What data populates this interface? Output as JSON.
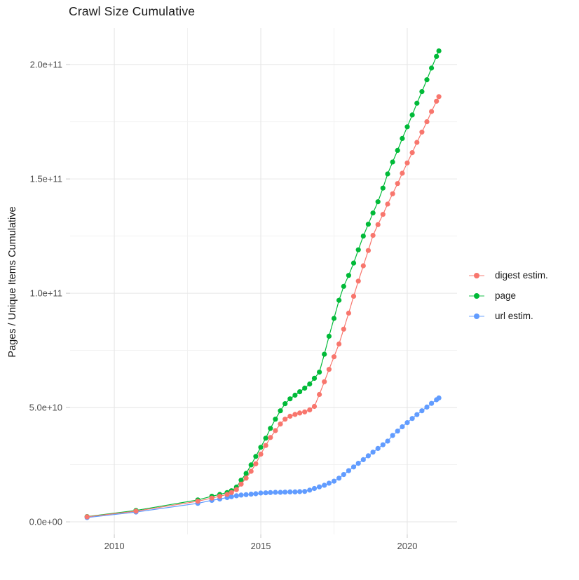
{
  "chart_data": {
    "type": "line-scatter",
    "title": "Crawl Size Cumulative",
    "xlabel": "",
    "ylabel": "Pages / Unique Items Cumulative",
    "value_unit": "1e9",
    "grid": "on",
    "legend_position": "right",
    "x_axis": {
      "domain": [
        2008.49,
        2021.7
      ],
      "ticks": [
        {
          "label": "2010",
          "value": 2010
        },
        {
          "label": "2015",
          "value": 2015
        },
        {
          "label": "2020",
          "value": 2020
        }
      ],
      "minor": [
        2012.5,
        2017.5
      ]
    },
    "y_axis": {
      "domain": [
        -5.5,
        216
      ],
      "ticks": [
        {
          "label": "0.0e+00",
          "value": 0
        },
        {
          "label": "5.0e+10",
          "value": 50
        },
        {
          "label": "1.0e+11",
          "value": 100
        },
        {
          "label": "1.5e+11",
          "value": 150
        },
        {
          "label": "2.0e+11",
          "value": 200
        }
      ],
      "minor": [
        25,
        75,
        125,
        175
      ]
    },
    "series": [
      {
        "name": "digest estim.",
        "color": "#F8766D",
        "z": 3,
        "points": [
          [
            2009.07,
            2.2
          ],
          [
            2010.74,
            4.7
          ],
          [
            2012.85,
            9.0
          ],
          [
            2013.33,
            10.4
          ],
          [
            2013.6,
            11.2
          ],
          [
            2013.85,
            12.0
          ],
          [
            2014.0,
            12.8
          ],
          [
            2014.17,
            14.1
          ],
          [
            2014.33,
            16.5
          ],
          [
            2014.5,
            19.1
          ],
          [
            2014.67,
            22.1
          ],
          [
            2014.83,
            25.4
          ],
          [
            2015.0,
            29.6
          ],
          [
            2015.17,
            33.4
          ],
          [
            2015.33,
            36.9
          ],
          [
            2015.5,
            39.9
          ],
          [
            2015.67,
            42.8
          ],
          [
            2015.83,
            44.9
          ],
          [
            2016.0,
            46.2
          ],
          [
            2016.17,
            47.0
          ],
          [
            2016.33,
            47.6
          ],
          [
            2016.5,
            48.1
          ],
          [
            2016.67,
            49.0
          ],
          [
            2016.83,
            50.5
          ],
          [
            2017.0,
            55.7
          ],
          [
            2017.17,
            61.3
          ],
          [
            2017.33,
            66.7
          ],
          [
            2017.5,
            72.2
          ],
          [
            2017.67,
            77.8
          ],
          [
            2017.83,
            84.3
          ],
          [
            2018.0,
            91.3
          ],
          [
            2018.17,
            98.7
          ],
          [
            2018.33,
            105.3
          ],
          [
            2018.5,
            112.0
          ],
          [
            2018.67,
            118.7
          ],
          [
            2018.83,
            125.3
          ],
          [
            2019.0,
            130.0
          ],
          [
            2019.17,
            134.5
          ],
          [
            2019.33,
            139.0
          ],
          [
            2019.5,
            143.5
          ],
          [
            2019.67,
            148.0
          ],
          [
            2019.83,
            152.5
          ],
          [
            2020.0,
            157.0
          ],
          [
            2020.17,
            161.5
          ],
          [
            2020.33,
            166.0
          ],
          [
            2020.5,
            170.5
          ],
          [
            2020.67,
            175.0
          ],
          [
            2020.83,
            179.5
          ],
          [
            2021.0,
            184.0
          ],
          [
            2021.08,
            186.0
          ]
        ]
      },
      {
        "name": "page",
        "color": "#00BA38",
        "z": 1,
        "points": [
          [
            2009.07,
            2.3
          ],
          [
            2010.74,
            5.0
          ],
          [
            2012.85,
            9.6
          ],
          [
            2013.33,
            11.2
          ],
          [
            2013.6,
            12.0
          ],
          [
            2013.85,
            12.8
          ],
          [
            2014.0,
            13.6
          ],
          [
            2014.17,
            15.2
          ],
          [
            2014.33,
            18.2
          ],
          [
            2014.5,
            21.2
          ],
          [
            2014.67,
            24.9
          ],
          [
            2014.83,
            28.6
          ],
          [
            2015.0,
            32.6
          ],
          [
            2015.17,
            36.6
          ],
          [
            2015.33,
            40.9
          ],
          [
            2015.5,
            44.9
          ],
          [
            2015.67,
            48.6
          ],
          [
            2015.83,
            51.7
          ],
          [
            2016.0,
            53.8
          ],
          [
            2016.17,
            55.4
          ],
          [
            2016.33,
            56.9
          ],
          [
            2016.5,
            58.5
          ],
          [
            2016.67,
            60.3
          ],
          [
            2016.83,
            62.8
          ],
          [
            2017.0,
            65.5
          ],
          [
            2017.17,
            73.3
          ],
          [
            2017.33,
            81.2
          ],
          [
            2017.5,
            89.0
          ],
          [
            2017.67,
            96.9
          ],
          [
            2017.83,
            103.0
          ],
          [
            2018.0,
            107.8
          ],
          [
            2018.17,
            113.2
          ],
          [
            2018.33,
            119.0
          ],
          [
            2018.5,
            125.0
          ],
          [
            2018.67,
            130.2
          ],
          [
            2018.83,
            135.1
          ],
          [
            2019.0,
            140.0
          ],
          [
            2019.17,
            146.0
          ],
          [
            2019.33,
            152.2
          ],
          [
            2019.5,
            157.4
          ],
          [
            2019.67,
            162.5
          ],
          [
            2019.83,
            167.7
          ],
          [
            2020.0,
            172.8
          ],
          [
            2020.17,
            178.0
          ],
          [
            2020.33,
            183.1
          ],
          [
            2020.5,
            188.2
          ],
          [
            2020.67,
            193.4
          ],
          [
            2020.83,
            198.5
          ],
          [
            2021.0,
            203.6
          ],
          [
            2021.08,
            206.0
          ]
        ]
      },
      {
        "name": "url estim.",
        "color": "#619CFF",
        "z": 2,
        "points": [
          [
            2009.07,
            1.9
          ],
          [
            2010.74,
            4.3
          ],
          [
            2012.85,
            8.1
          ],
          [
            2013.33,
            9.4
          ],
          [
            2013.6,
            10.0
          ],
          [
            2013.85,
            10.6
          ],
          [
            2014.0,
            11.0
          ],
          [
            2014.17,
            11.4
          ],
          [
            2014.33,
            11.7
          ],
          [
            2014.5,
            11.9
          ],
          [
            2014.67,
            12.1
          ],
          [
            2014.83,
            12.3
          ],
          [
            2015.0,
            12.6
          ],
          [
            2015.17,
            12.7
          ],
          [
            2015.33,
            12.8
          ],
          [
            2015.5,
            12.9
          ],
          [
            2015.67,
            12.9
          ],
          [
            2015.83,
            13.0
          ],
          [
            2016.0,
            13.1
          ],
          [
            2016.17,
            13.1
          ],
          [
            2016.33,
            13.2
          ],
          [
            2016.5,
            13.3
          ],
          [
            2016.67,
            13.9
          ],
          [
            2016.83,
            14.6
          ],
          [
            2017.0,
            15.3
          ],
          [
            2017.17,
            16.0
          ],
          [
            2017.33,
            16.9
          ],
          [
            2017.5,
            17.8
          ],
          [
            2017.67,
            19.1
          ],
          [
            2017.83,
            20.7
          ],
          [
            2018.0,
            22.4
          ],
          [
            2018.17,
            24.0
          ],
          [
            2018.33,
            25.6
          ],
          [
            2018.5,
            27.2
          ],
          [
            2018.67,
            28.9
          ],
          [
            2018.83,
            30.5
          ],
          [
            2019.0,
            32.1
          ],
          [
            2019.17,
            33.7
          ],
          [
            2019.33,
            35.3
          ],
          [
            2019.5,
            37.8
          ],
          [
            2019.67,
            39.7
          ],
          [
            2019.83,
            41.6
          ],
          [
            2020.0,
            43.4
          ],
          [
            2020.17,
            45.2
          ],
          [
            2020.33,
            46.9
          ],
          [
            2020.5,
            48.6
          ],
          [
            2020.67,
            50.2
          ],
          [
            2020.83,
            51.8
          ],
          [
            2021.0,
            53.4
          ],
          [
            2021.08,
            54.2
          ]
        ]
      }
    ],
    "style": {
      "grid_major_color": "#E6E6E6",
      "grid_minor_color": "#F1F1F1",
      "tick_color": "#C8C8C8",
      "axis_text_color": "#4D4D4D",
      "text_color": "#1a1a1a",
      "background": "#FFFFFF"
    }
  }
}
